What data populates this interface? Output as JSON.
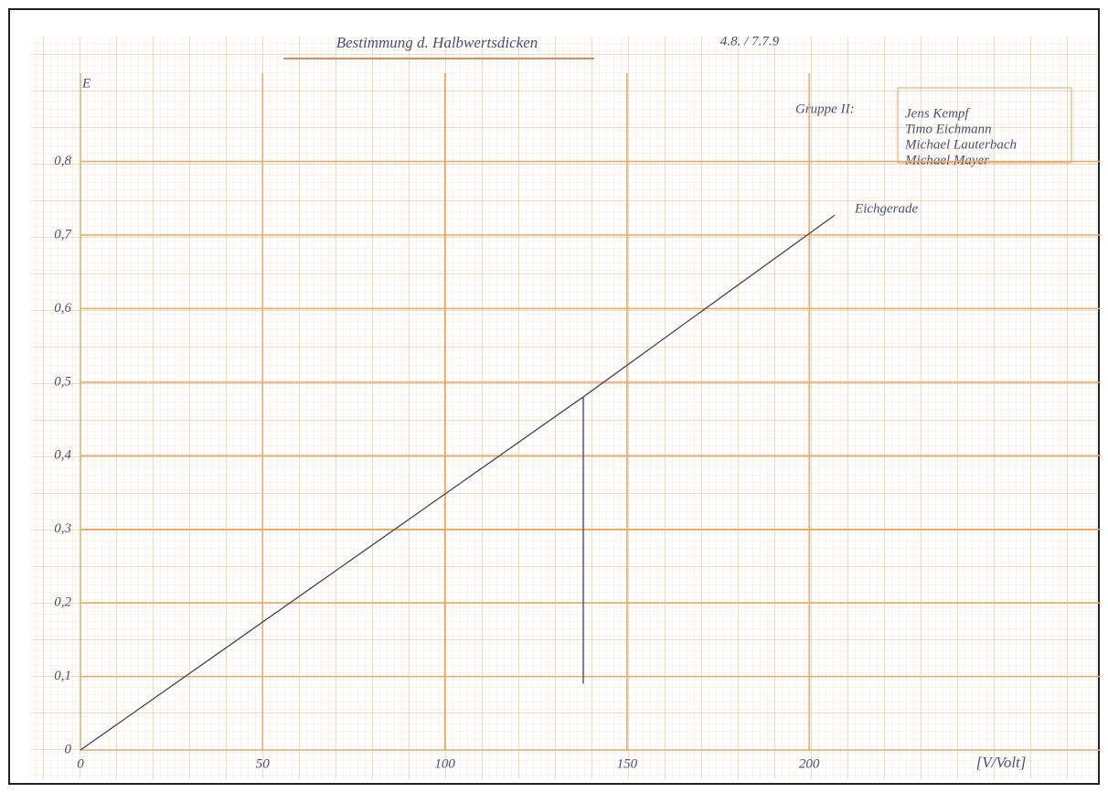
{
  "chart_data": {
    "type": "line",
    "title": "Bestimmung d. Halbwertsdicken",
    "date": "4.8. / 7.7.9",
    "notes": [
      "Gruppe II:",
      "Jens Kempf",
      "Timo Eichmann",
      "Michael Lauterbach",
      "Michael Mayer"
    ],
    "annotation": "Eichgerade",
    "x_label": "[V/Volt]",
    "y_label": "E",
    "x": [
      0,
      138,
      207
    ],
    "series": [
      {
        "name": "Eichgerade",
        "color": "#3b4660",
        "values": [
          0,
          0.48,
          0.727
        ]
      }
    ],
    "reading_line": {
      "x": 138,
      "y": [
        0.09,
        0.48
      ]
    },
    "xlim": [
      0,
      280
    ],
    "ylim": [
      0,
      0.92
    ],
    "xticks": [
      0,
      50,
      100,
      150,
      200
    ],
    "yticks": [
      0,
      {
        "value": 0.1,
        "label": "0,1"
      },
      {
        "value": 0.2,
        "label": "0,2"
      },
      {
        "value": 0.3,
        "label": "0,3"
      },
      {
        "value": 0.4,
        "label": "0,4"
      },
      {
        "value": 0.5,
        "label": "0,5"
      },
      {
        "value": 0.6,
        "label": "0,6"
      },
      {
        "value": 0.7,
        "label": "0,7"
      },
      {
        "value": 0.8,
        "label": "0,8"
      }
    ],
    "grid": true
  }
}
